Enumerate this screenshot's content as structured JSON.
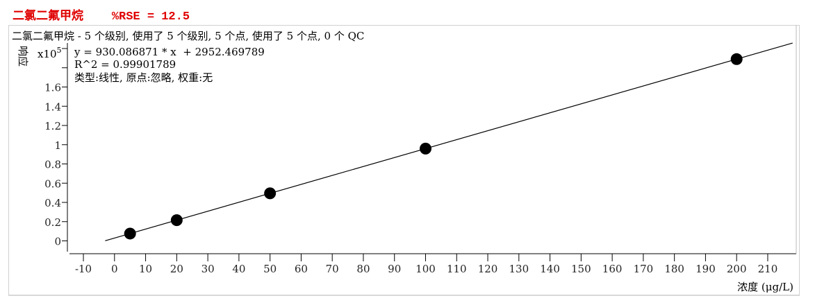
{
  "header": {
    "compound": "二氯二氟甲烷",
    "rse": "%RSE = 12.5"
  },
  "chart_data": {
    "type": "scatter",
    "title": "二氯二氟甲烷 - 5 个级别, 使用了 5 个级别, 5 个点, 使用了 5 个点, 0 个 QC",
    "xlabel": "浓度 (μg/L)",
    "ylabel": "响应",
    "y_multiplier": "x10",
    "y_multiplier_exp": "5",
    "xlim": [
      -13,
      219
    ],
    "ylim": [
      -0.1,
      2.05
    ],
    "xticks": [
      -10,
      0,
      10,
      20,
      30,
      40,
      50,
      60,
      70,
      80,
      90,
      100,
      110,
      120,
      130,
      140,
      150,
      160,
      170,
      180,
      190,
      200,
      210
    ],
    "yticks": [
      0,
      0.2,
      0.4,
      0.6,
      0.8,
      1,
      1.2,
      1.4,
      1.6,
      1.8,
      2.0
    ],
    "ytick_labels": [
      "0",
      "0.2",
      "0.4",
      "0.6",
      "0.8",
      "1",
      "1.2",
      "1.4",
      "1.6",
      "",
      ""
    ],
    "points": {
      "x": [
        5,
        20,
        50,
        100,
        200
      ],
      "y": [
        0.076,
        0.2155,
        0.4946,
        0.9596,
        1.8897
      ]
    },
    "fit": {
      "slope": 930.086871,
      "intercept": 2952.469789,
      "x_range": [
        -3,
        218
      ]
    },
    "annotations": [
      "y = 930.086871 * x  + 2952.469789",
      "R^2 = 0.99901789",
      "类型:线性, 原点:忽略, 权重:无"
    ],
    "grid": false,
    "colors": {
      "points": "#000000",
      "line": "#000000",
      "title": "#e00000"
    }
  }
}
